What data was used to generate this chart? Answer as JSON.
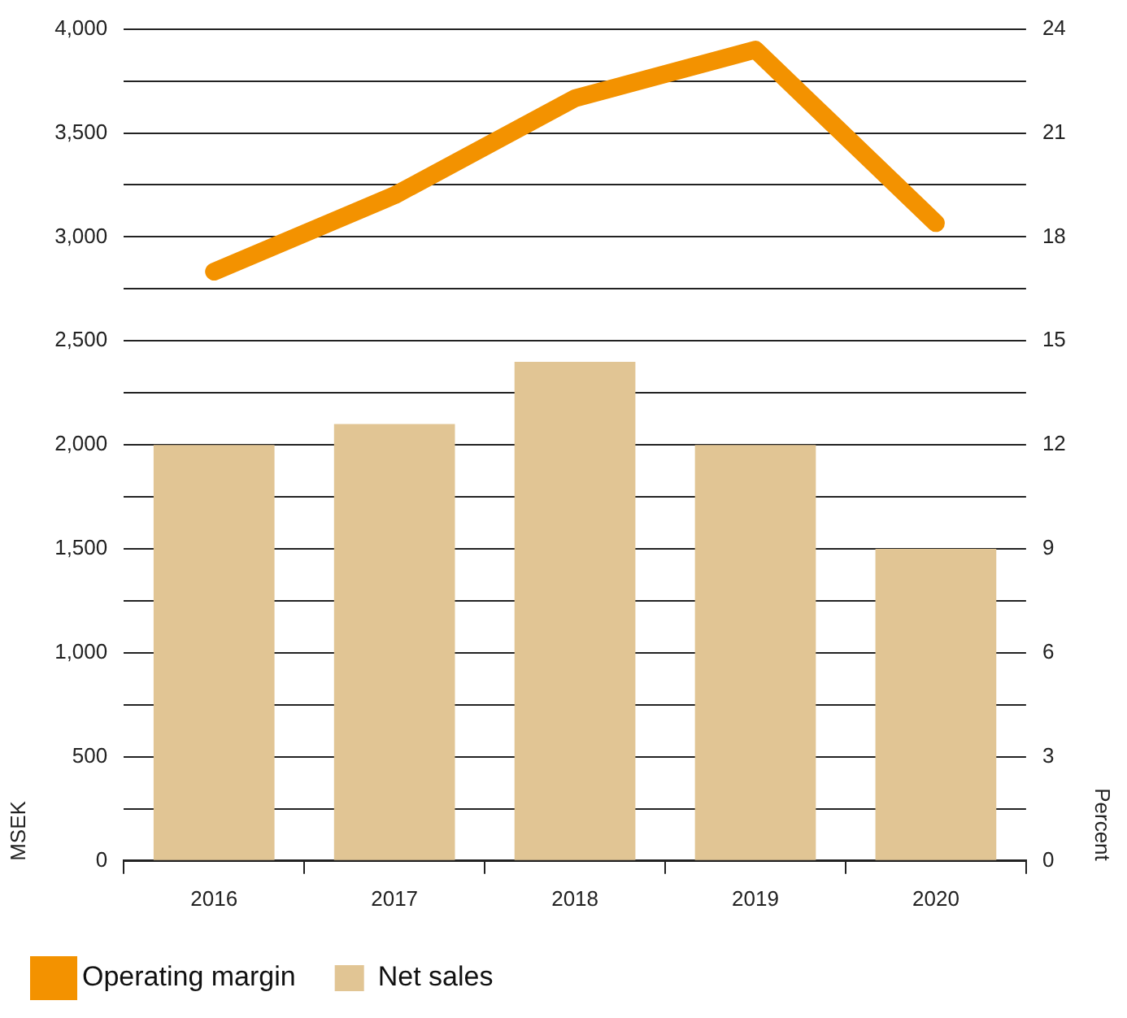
{
  "chart_data": {
    "type": "bar",
    "ylabel": "MSEK",
    "y2label": "Percent",
    "categories": [
      "2016",
      "2017",
      "2018",
      "2019",
      "2020"
    ],
    "series": [
      {
        "name": "Operating margin",
        "type": "line",
        "axis": "y2",
        "color": "#f39200",
        "values": [
          17.0,
          19.2,
          22.0,
          23.4,
          18.4
        ]
      },
      {
        "name": "Net sales",
        "color": "#e1c594",
        "values": [
          2000,
          2100,
          2400,
          2000,
          1500
        ]
      }
    ],
    "ylim": [
      0,
      4000
    ],
    "yticks": [
      0,
      {
        "value": 250,
        "label": null
      },
      500,
      {
        "value": 750,
        "label": null
      },
      {
        "value": 1000,
        "label": "1,000"
      },
      {
        "value": 1250,
        "label": null
      },
      {
        "value": 1500,
        "label": "1,500"
      },
      {
        "value": 1750,
        "label": null
      },
      {
        "value": 2000,
        "label": "2,000"
      },
      {
        "value": 2250,
        "label": null
      },
      {
        "value": 2500,
        "label": "2,500"
      },
      {
        "value": 2750,
        "label": null
      },
      {
        "value": 3000,
        "label": "3,000"
      },
      {
        "value": 3250,
        "label": null
      },
      {
        "value": 3500,
        "label": "3,500"
      },
      {
        "value": 3750,
        "label": null
      },
      {
        "value": 4000,
        "label": "4,000"
      }
    ],
    "y2lim": [
      0,
      24
    ],
    "y2ticks": [
      0,
      3,
      6,
      9,
      12,
      15,
      18,
      21,
      24
    ],
    "grid": "y",
    "legend": "bottom left",
    "marker": "none",
    "line_style": "solid"
  }
}
